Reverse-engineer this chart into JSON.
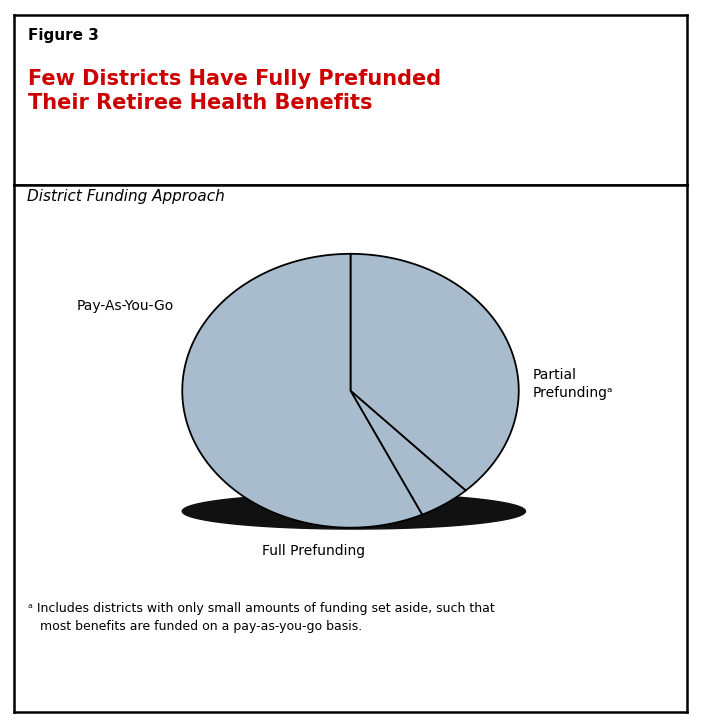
{
  "figure_label": "Figure 3",
  "title_line1": "Few Districts Have Fully Prefunded",
  "title_line2": "Their Retiree Health Benefits",
  "subtitle": "District Funding Approach",
  "slices": [
    {
      "label": "Pay-As-You-Go",
      "value": 57
    },
    {
      "label": "Partial\nPrefundingᵃ",
      "value": 38
    },
    {
      "label": "Full Prefunding",
      "value": 5
    }
  ],
  "pie_startangle": 90,
  "pie_color": "#a8bcce",
  "edge_color": "#000000",
  "edge_linewidth": 1.3,
  "shadow_color": "#111111",
  "footnote_line1": "ᵃ Includes districts with only small amounts of funding set aside, such that",
  "footnote_line2": "   most benefits are funded on a pay-as-you-go basis.",
  "bg_color": "#ffffff",
  "title_color": "#cc0000",
  "label_fontsize": 10,
  "title_fontsize": 15,
  "fig_label_fontsize": 11,
  "subtitle_fontsize": 11,
  "footnote_fontsize": 9
}
